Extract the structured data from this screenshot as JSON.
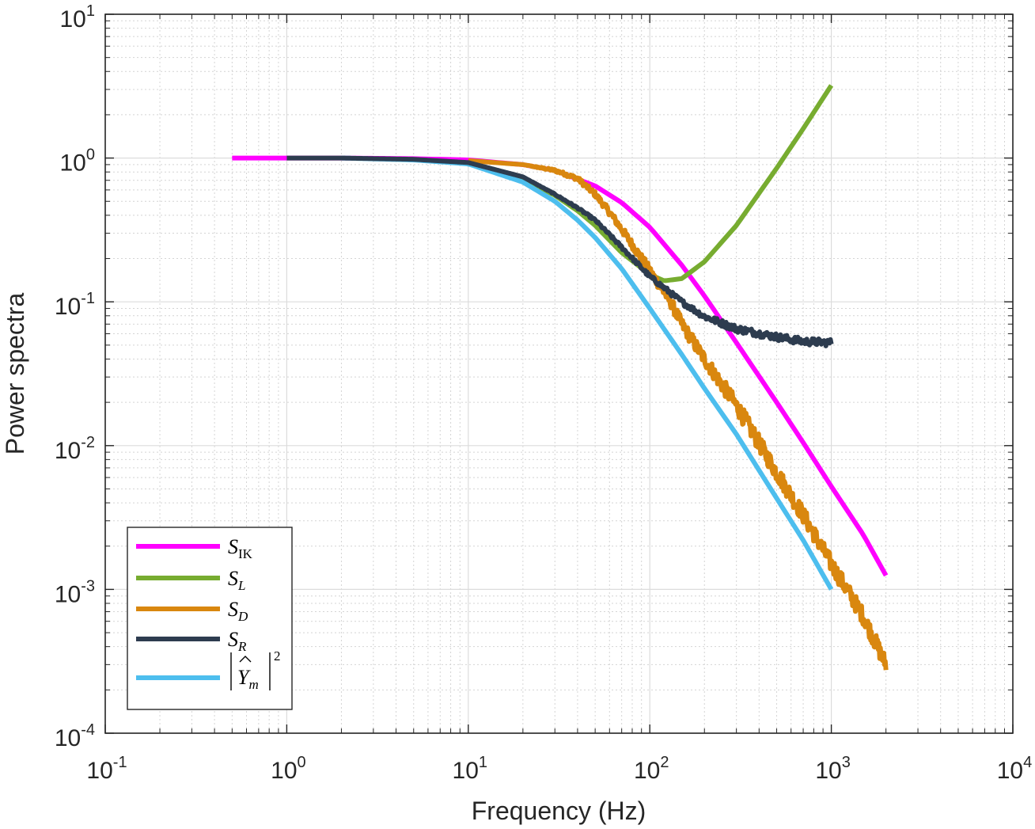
{
  "chart_data": {
    "type": "line",
    "xscale": "log",
    "yscale": "log",
    "xlim": [
      0.1,
      10000
    ],
    "ylim": [
      0.0001,
      10
    ],
    "xlabel": "Frequency (Hz)",
    "ylabel": "Power spectra",
    "grid": true,
    "minor_grid": true,
    "x_ticks": [
      {
        "base": "10",
        "exp": "-1",
        "value": 0.1
      },
      {
        "base": "10",
        "exp": "0",
        "value": 1
      },
      {
        "base": "10",
        "exp": "1",
        "value": 10
      },
      {
        "base": "10",
        "exp": "2",
        "value": 100
      },
      {
        "base": "10",
        "exp": "3",
        "value": 1000
      },
      {
        "base": "10",
        "exp": "4",
        "value": 10000
      }
    ],
    "y_ticks": [
      {
        "base": "10",
        "exp": "-4",
        "value": 0.0001
      },
      {
        "base": "10",
        "exp": "-3",
        "value": 0.001
      },
      {
        "base": "10",
        "exp": "-2",
        "value": 0.01
      },
      {
        "base": "10",
        "exp": "-1",
        "value": 0.1
      },
      {
        "base": "10",
        "exp": "0",
        "value": 1
      },
      {
        "base": "10",
        "exp": "1",
        "value": 10
      }
    ],
    "legend_position": "bottom-left",
    "series": [
      {
        "name": "S_IK",
        "legend": {
          "main": "S",
          "sub": "IK",
          "sub_upright": true
        },
        "color": "#ff00ff",
        "noise": 0,
        "x": [
          0.5,
          1,
          2,
          5,
          10,
          20,
          30,
          50,
          70,
          100,
          150,
          200,
          300,
          500,
          700,
          1000,
          1500,
          2000
        ],
        "y": [
          1.0,
          1.0,
          1.0,
          0.99,
          0.97,
          0.9,
          0.82,
          0.64,
          0.49,
          0.33,
          0.18,
          0.11,
          0.052,
          0.02,
          0.0105,
          0.0052,
          0.0024,
          0.00125
        ]
      },
      {
        "name": "S_L",
        "legend": {
          "main": "S",
          "sub": "L",
          "sub_upright": false
        },
        "color": "#77ac30",
        "noise": 0,
        "x": [
          10,
          20,
          30,
          40,
          50,
          70,
          100,
          120,
          150,
          200,
          300,
          500,
          700,
          1000
        ],
        "y": [
          0.93,
          0.72,
          0.55,
          0.43,
          0.34,
          0.22,
          0.155,
          0.14,
          0.145,
          0.19,
          0.34,
          0.85,
          1.6,
          3.2
        ]
      },
      {
        "name": "S_D",
        "legend": {
          "main": "S",
          "sub": "D",
          "sub_upright": false
        },
        "color": "#d9870f",
        "noise": 0.06,
        "x": [
          10,
          20,
          30,
          40,
          50,
          60,
          70,
          80,
          100,
          130,
          150,
          200,
          300,
          500,
          700,
          1000,
          1500,
          2000
        ],
        "y": [
          0.96,
          0.9,
          0.82,
          0.72,
          0.56,
          0.42,
          0.32,
          0.25,
          0.165,
          0.1,
          0.07,
          0.04,
          0.019,
          0.0065,
          0.0033,
          0.0015,
          0.00065,
          0.0003
        ]
      },
      {
        "name": "S_R",
        "legend": {
          "main": "S",
          "sub": "R",
          "sub_upright": false
        },
        "color": "#2d3c4f",
        "noise": 0.025,
        "x": [
          1,
          2,
          5,
          10,
          20,
          30,
          40,
          50,
          70,
          100,
          150,
          200,
          300,
          500,
          700,
          1000
        ],
        "y": [
          1.0,
          1.0,
          0.98,
          0.93,
          0.74,
          0.56,
          0.45,
          0.37,
          0.24,
          0.15,
          0.1,
          0.079,
          0.065,
          0.057,
          0.053,
          0.052
        ]
      },
      {
        "name": "|Y_m|^2",
        "legend": {
          "main": "Y",
          "sub": "m",
          "sup": "2",
          "hat": true,
          "abs": true
        },
        "color": "#4dbeee",
        "noise": 0,
        "x": [
          2,
          5,
          10,
          20,
          30,
          40,
          50,
          70,
          100,
          150,
          200,
          300,
          500,
          700,
          1000
        ],
        "y": [
          1.0,
          0.97,
          0.91,
          0.68,
          0.5,
          0.37,
          0.28,
          0.17,
          0.09,
          0.043,
          0.025,
          0.012,
          0.0043,
          0.0022,
          0.001
        ]
      }
    ]
  }
}
